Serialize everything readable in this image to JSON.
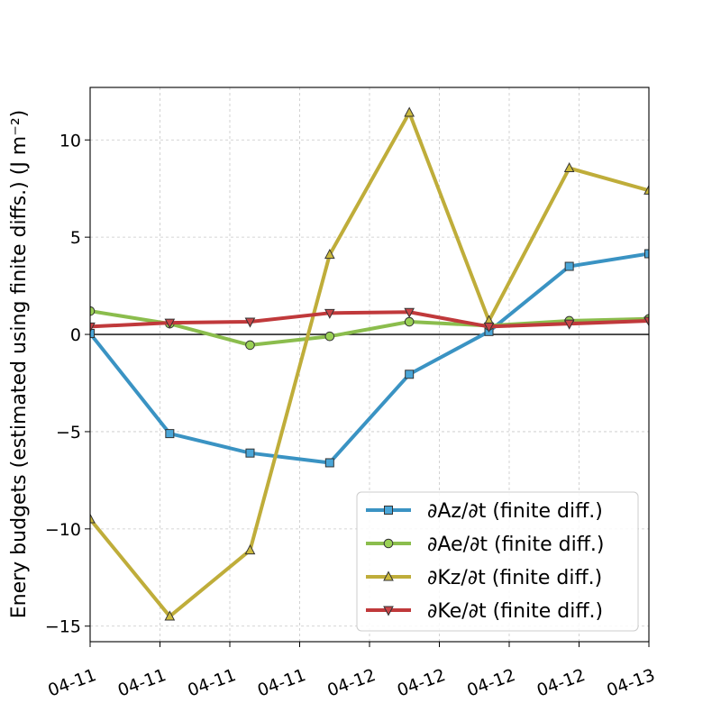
{
  "chart_data": {
    "type": "line",
    "ylabel": "Enery budgets (estimated using finite diffs.) (J m⁻²)",
    "ylim": [
      -15.8,
      12.7
    ],
    "yticks": [
      -15,
      -10,
      -5,
      0,
      5,
      10
    ],
    "ytick_labels": [
      "−15",
      "−10",
      "−5",
      "0",
      "5",
      "10"
    ],
    "xlim": [
      0,
      8
    ],
    "xticks": [
      0,
      1,
      2,
      3,
      4,
      5,
      6,
      7,
      8
    ],
    "xtick_labels": [
      "04-11",
      "04-11",
      "04-11",
      "04-11",
      "04-12",
      "04-12",
      "04-12",
      "04-12",
      "04-13"
    ],
    "xtick_rotation_deg": 20,
    "x": [
      0,
      1.14,
      2.29,
      3.43,
      4.57,
      5.71,
      6.86,
      8.0
    ],
    "grid": true,
    "zero_line": true,
    "legend_position": "lower-right",
    "series": [
      {
        "name": "∂Az/∂t (finite diff.)",
        "color": "#3a93c3",
        "face": "#4aa6d8",
        "marker": "square",
        "values": [
          0.05,
          -5.1,
          -6.1,
          -6.6,
          -2.05,
          0.15,
          3.5,
          4.15
        ]
      },
      {
        "name": "∂Ae/∂t (finite diff.)",
        "color": "#8bbd4d",
        "face": "#9ad156",
        "marker": "circle",
        "values": [
          1.2,
          0.55,
          -0.55,
          -0.1,
          0.65,
          0.45,
          0.7,
          0.8
        ]
      },
      {
        "name": "∂Kz/∂t (finite diff.)",
        "color": "#bfad3a",
        "face": "#cdbb3e",
        "marker": "triangle-up",
        "values": [
          -9.5,
          -14.5,
          -11.1,
          4.1,
          11.4,
          0.7,
          8.55,
          7.4
        ]
      },
      {
        "name": "∂Ke/∂t (finite diff.)",
        "color": "#c0393b",
        "face": "#c94548",
        "marker": "triangle-down",
        "values": [
          0.4,
          0.6,
          0.65,
          1.1,
          1.15,
          0.4,
          0.55,
          0.7
        ]
      }
    ]
  }
}
